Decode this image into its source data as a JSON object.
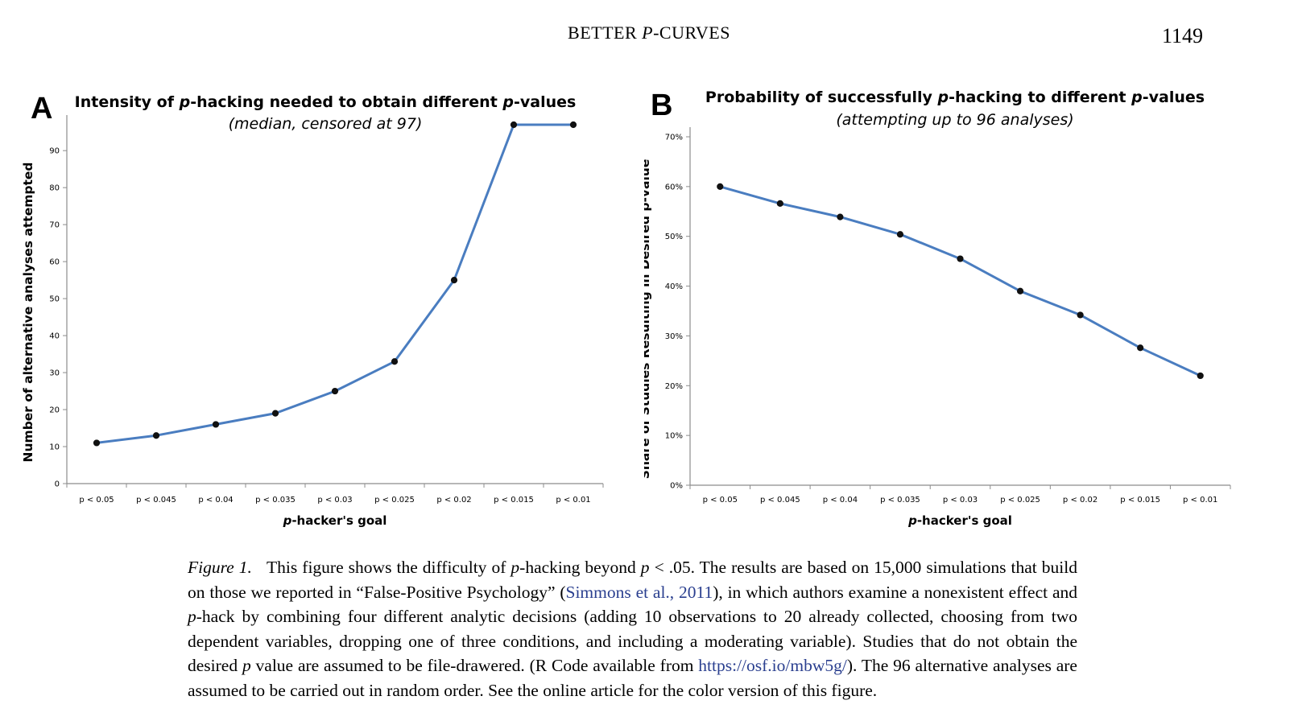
{
  "header": {
    "running_head_prefix": "BETTER ",
    "running_head_italic": "P",
    "running_head_suffix": "-CURVES",
    "page_number": "1149"
  },
  "panel_a": {
    "letter": "A",
    "title_pre": "Intensity of ",
    "title_italic": "p",
    "title_mid": "-hacking needed to obtain different ",
    "title_italic2": "p",
    "title_post": "-values",
    "subtitle": "(median, censored at 97)"
  },
  "panel_b": {
    "letter": "B",
    "title_pre": "Probability of successfully ",
    "title_italic": "p",
    "title_mid": "-hacking to different ",
    "title_italic2": "p",
    "title_post": "-values",
    "subtitle": "(attempting up to 96 analyses)"
  },
  "chart_data": [
    {
      "type": "line",
      "title": "Intensity of p-hacking needed to obtain different p-values",
      "subtitle": "(median, censored at 97)",
      "xlabel": "p-hacker's goal",
      "ylabel": "Number of alternative analyses attempted",
      "categories": [
        "p < 0.05",
        "p < 0.045",
        "p < 0.04",
        "p < 0.035",
        "p < 0.03",
        "p < 0.025",
        "p < 0.02",
        "p < 0.015",
        "p < 0.01"
      ],
      "values": [
        11,
        13,
        16,
        19,
        25,
        33,
        55,
        97,
        97
      ],
      "ylim": [
        0,
        97
      ],
      "yticks": [
        0,
        10,
        20,
        30,
        40,
        50,
        60,
        70,
        80,
        90
      ],
      "ytick_labels": [
        "0",
        "10",
        "20",
        "30",
        "40",
        "50",
        "60",
        "70",
        "80",
        "90"
      ],
      "grid": false,
      "color": "#4a7dc0"
    },
    {
      "type": "line",
      "title": "Probability of successfully p-hacking to different p-values",
      "subtitle": "(attempting up to 96 analyses)",
      "xlabel": "p-hacker's goal",
      "ylabel": "Share of Studies Resulting in Desired p-value",
      "categories": [
        "p < 0.05",
        "p < 0.045",
        "p < 0.04",
        "p < 0.035",
        "p < 0.03",
        "p < 0.025",
        "p < 0.02",
        "p < 0.015",
        "p < 0.01"
      ],
      "values": [
        0.6,
        0.566,
        0.539,
        0.504,
        0.455,
        0.39,
        0.342,
        0.276,
        0.22
      ],
      "ylim": [
        0,
        0.7
      ],
      "yticks": [
        0,
        0.1,
        0.2,
        0.3,
        0.4,
        0.5,
        0.6,
        0.7
      ],
      "ytick_labels": [
        "0%",
        "10%",
        "20%",
        "30%",
        "40%",
        "50%",
        "60%",
        "70%"
      ],
      "grid": false,
      "color": "#4a7dc0"
    }
  ],
  "axis_a": {
    "xlabel_italic": "p",
    "xlabel_rest": "-hacker's goal",
    "ylabel": "Number of alternative analyses attempted"
  },
  "axis_b": {
    "xlabel_italic": "p",
    "xlabel_rest": "-hacker's goal",
    "ylabel": "Share of Studies Resulting in Desired p-value"
  },
  "caption": {
    "label": "Figure 1.",
    "s1": "This figure shows the difficulty of ",
    "s1_p": "p",
    "s2": "-hacking beyond ",
    "s2_p": "p",
    "s3": " < .05. The results are based on 15,000 simulations that build on those we reported in “False-Positive Psychology” (",
    "citation": "Simmons et al., 2011",
    "s4": "), in which authors examine a nonexistent effect and ",
    "s4_p": "p",
    "s5": "-hack by combining four different analytic decisions (adding 10 observations to 20 already collected, choosing from two dependent variables, dropping one of three conditions, and including a moderating variable). Studies that do not obtain the desired ",
    "s5_p": "p",
    "s6": " value are assumed to be file-drawered. (R Code available from ",
    "url": "https://osf.io/mbw5g/",
    "s7": "). The 96 alternative analyses are assumed to be carried out in random order. See the online article for the color version of this figure."
  }
}
